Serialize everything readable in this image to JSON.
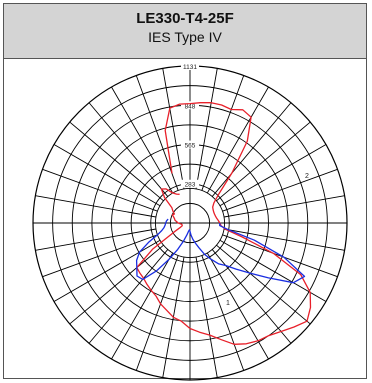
{
  "header": {
    "title": "LE330-T4-25F",
    "subtitle": "IES Type IV"
  },
  "chart_data": {
    "type": "polar",
    "title": "LE330-T4-25F",
    "subtitle": "IES Type IV",
    "radial_ticks": [
      283,
      565,
      848,
      1131
    ],
    "radial_max": 1131,
    "angle_step_deg": 10,
    "curve_labels": [
      "2",
      "1"
    ],
    "series": [
      {
        "label": "2",
        "color": "#e8202a",
        "points": [
          [
            -20,
            380
          ],
          [
            -15,
            690
          ],
          [
            -10,
            840
          ],
          [
            -5,
            860
          ],
          [
            0,
            860
          ],
          [
            5,
            870
          ],
          [
            10,
            880
          ],
          [
            15,
            880
          ],
          [
            20,
            870
          ],
          [
            25,
            900
          ],
          [
            30,
            880
          ],
          [
            35,
            720
          ],
          [
            40,
            470
          ],
          [
            45,
            290
          ],
          [
            50,
            225
          ],
          [
            55,
            200
          ],
          [
            60,
            192
          ],
          [
            65,
            188
          ],
          [
            70,
            188
          ],
          [
            75,
            190
          ],
          [
            80,
            195
          ],
          [
            85,
            205
          ],
          [
            90,
            215
          ],
          [
            95,
            225
          ],
          [
            100,
            260
          ],
          [
            105,
            390
          ],
          [
            110,
            640
          ],
          [
            115,
            880
          ],
          [
            120,
            1000
          ],
          [
            125,
            1060
          ],
          [
            130,
            1100
          ],
          [
            135,
            1060
          ],
          [
            140,
            1020
          ],
          [
            145,
            990
          ],
          [
            150,
            980
          ],
          [
            155,
            960
          ],
          [
            160,
            930
          ],
          [
            165,
            870
          ],
          [
            170,
            820
          ],
          [
            175,
            790
          ],
          [
            180,
            760
          ],
          [
            185,
            710
          ],
          [
            190,
            690
          ],
          [
            195,
            650
          ],
          [
            200,
            620
          ],
          [
            205,
            580
          ],
          [
            210,
            560
          ],
          [
            215,
            540
          ],
          [
            220,
            520
          ],
          [
            225,
            510
          ],
          [
            230,
            500
          ],
          [
            235,
            330
          ],
          [
            240,
            140
          ],
          [
            245,
            80
          ],
          [
            250,
            60
          ],
          [
            255,
            58
          ],
          [
            260,
            60
          ],
          [
            265,
            70
          ],
          [
            270,
            85
          ],
          [
            275,
            95
          ],
          [
            280,
            110
          ],
          [
            285,
            115
          ],
          [
            290,
            125
          ],
          [
            295,
            140
          ],
          [
            300,
            130
          ],
          [
            305,
            150
          ],
          [
            310,
            170
          ],
          [
            315,
            260
          ],
          [
            320,
            320
          ],
          [
            325,
            300
          ],
          [
            330,
            250
          ],
          [
            335,
            230
          ],
          [
            340,
            220
          ]
        ]
      },
      {
        "label": "1",
        "color": "#1a2ee0",
        "points": [
          [
            90,
            215
          ],
          [
            95,
            215
          ],
          [
            100,
            280
          ],
          [
            105,
            480
          ],
          [
            110,
            720
          ],
          [
            115,
            910
          ],
          [
            120,
            860
          ],
          [
            125,
            690
          ],
          [
            130,
            560
          ],
          [
            135,
            470
          ],
          [
            140,
            400
          ],
          [
            145,
            360
          ],
          [
            150,
            300
          ],
          [
            155,
            250
          ],
          [
            160,
            190
          ],
          [
            165,
            150
          ],
          [
            170,
            120
          ],
          [
            175,
            90
          ],
          [
            180,
            60
          ],
          [
            185,
            50
          ],
          [
            190,
            60
          ],
          [
            195,
            90
          ],
          [
            200,
            140
          ],
          [
            205,
            210
          ],
          [
            210,
            300
          ],
          [
            215,
            420
          ],
          [
            220,
            530
          ],
          [
            225,
            540
          ],
          [
            230,
            500
          ],
          [
            235,
            470
          ],
          [
            240,
            420
          ],
          [
            245,
            330
          ],
          [
            250,
            250
          ],
          [
            255,
            210
          ],
          [
            260,
            190
          ],
          [
            265,
            180
          ],
          [
            270,
            175
          ],
          [
            275,
            170
          ],
          [
            280,
            160
          ]
        ]
      }
    ]
  }
}
